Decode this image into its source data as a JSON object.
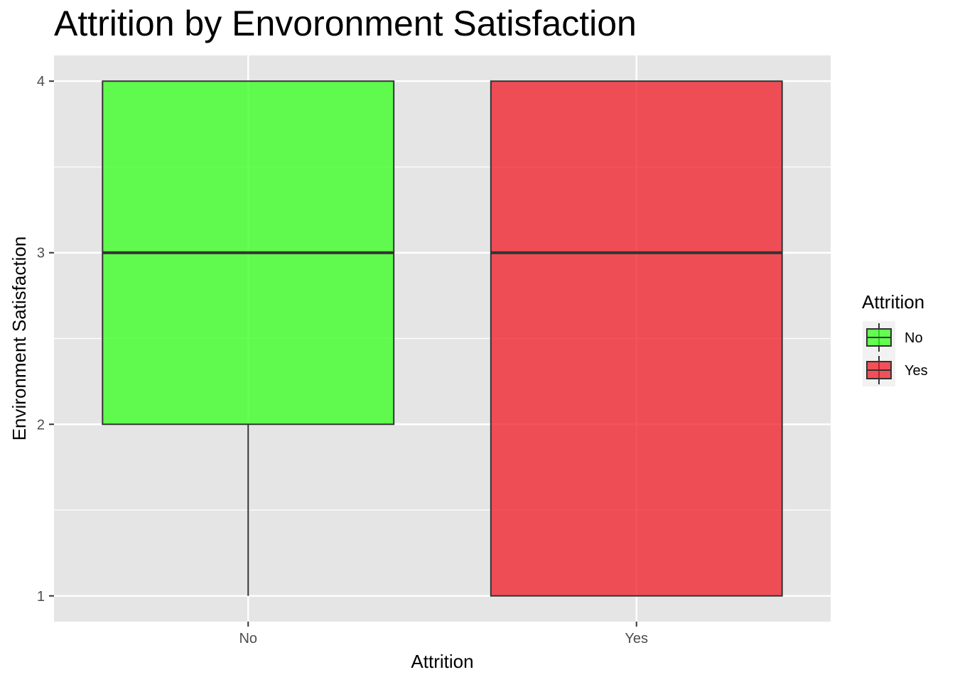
{
  "chart_data": {
    "type": "boxplot",
    "title": "Attrition by Envoronment Satisfaction",
    "xlabel": "Attrition",
    "ylabel": "Environment Satisfaction",
    "categories": [
      "No",
      "Yes"
    ],
    "ylim": [
      0.85,
      4.15
    ],
    "yticks": [
      "1",
      "2",
      "3",
      "4"
    ],
    "grid": true,
    "boxes": [
      {
        "category": "No",
        "min": 1,
        "q1": 2,
        "median": 3,
        "q3": 4,
        "max": 4,
        "fill": "#33ff1a"
      },
      {
        "category": "Yes",
        "min": 1,
        "q1": 1,
        "median": 3,
        "q3": 4,
        "max": 4,
        "fill": "#f21a26"
      }
    ],
    "legend": {
      "title": "Attrition",
      "position": "right",
      "items": [
        {
          "label": "No",
          "color": "#33ff1a"
        },
        {
          "label": "Yes",
          "color": "#f21a26"
        }
      ]
    },
    "panel_background": "#e5e5e5",
    "grid_color": "#ffffff"
  }
}
